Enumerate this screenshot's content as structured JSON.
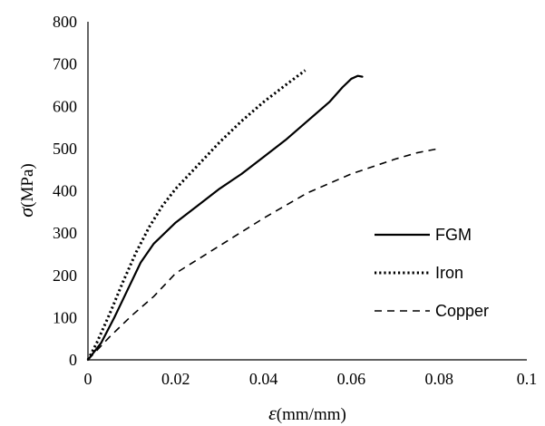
{
  "chart_data": {
    "type": "line",
    "xlabel": {
      "symbol": "ε",
      "unit": "(mm/mm)"
    },
    "ylabel": {
      "symbol": "σ",
      "unit": "(MPa)"
    },
    "xlim": [
      0,
      0.1
    ],
    "ylim": [
      0,
      800
    ],
    "xticks": [
      "0",
      "0.02",
      "0.04",
      "0.06",
      "0.08",
      "0.1"
    ],
    "yticks": [
      "0",
      "100",
      "200",
      "300",
      "400",
      "500",
      "600",
      "700",
      "800"
    ],
    "grid": false,
    "legend_position": "right",
    "series": [
      {
        "name": "FGM",
        "style": "solid",
        "color": "#000000",
        "points": [
          [
            0,
            0
          ],
          [
            0.003,
            40
          ],
          [
            0.006,
            100
          ],
          [
            0.009,
            165
          ],
          [
            0.012,
            230
          ],
          [
            0.015,
            275
          ],
          [
            0.02,
            325
          ],
          [
            0.025,
            365
          ],
          [
            0.03,
            405
          ],
          [
            0.035,
            440
          ],
          [
            0.04,
            480
          ],
          [
            0.045,
            520
          ],
          [
            0.05,
            565
          ],
          [
            0.055,
            610
          ],
          [
            0.058,
            645
          ],
          [
            0.06,
            665
          ],
          [
            0.0615,
            672
          ],
          [
            0.0625,
            670
          ]
        ]
      },
      {
        "name": "Iron",
        "style": "dotted",
        "color": "#000000",
        "points": [
          [
            0,
            0
          ],
          [
            0.002,
            40
          ],
          [
            0.005,
            110
          ],
          [
            0.008,
            185
          ],
          [
            0.011,
            255
          ],
          [
            0.014,
            315
          ],
          [
            0.017,
            365
          ],
          [
            0.02,
            405
          ],
          [
            0.025,
            460
          ],
          [
            0.03,
            515
          ],
          [
            0.035,
            565
          ],
          [
            0.04,
            610
          ],
          [
            0.045,
            650
          ],
          [
            0.0495,
            685
          ]
        ]
      },
      {
        "name": "Copper",
        "style": "dashed",
        "color": "#000000",
        "points": [
          [
            0,
            0
          ],
          [
            0.005,
            55
          ],
          [
            0.01,
            105
          ],
          [
            0.015,
            150
          ],
          [
            0.02,
            205
          ],
          [
            0.03,
            270
          ],
          [
            0.04,
            335
          ],
          [
            0.05,
            395
          ],
          [
            0.06,
            440
          ],
          [
            0.07,
            475
          ],
          [
            0.075,
            490
          ],
          [
            0.08,
            500
          ]
        ]
      }
    ]
  }
}
